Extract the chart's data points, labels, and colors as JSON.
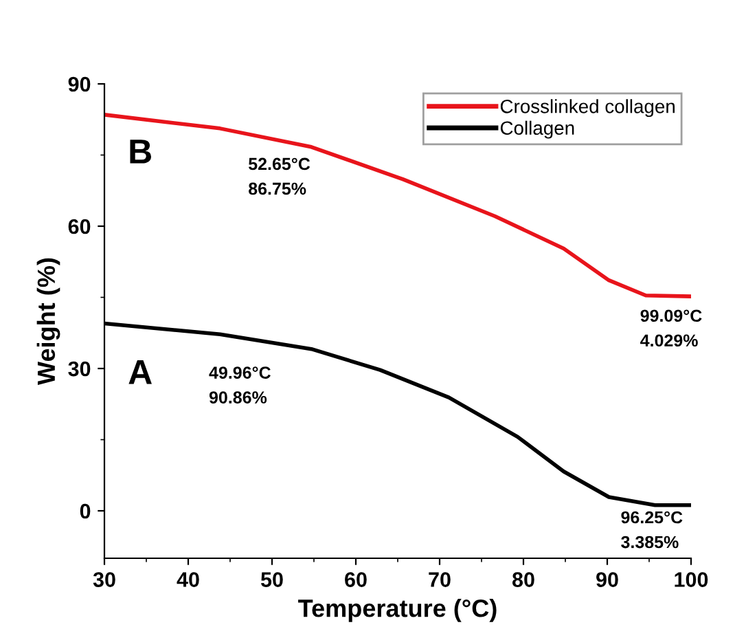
{
  "chart_data": {
    "type": "line",
    "xlabel": "Temperature (°C)",
    "ylabel": "Weight (%)",
    "xlim": [
      30,
      100
    ],
    "xticks": [
      30,
      40,
      50,
      60,
      70,
      80,
      90,
      100
    ],
    "ylim": [
      -10,
      90
    ],
    "yticks": [
      0,
      30,
      60,
      90
    ],
    "series": [
      {
        "name": "Crosslinked collagen",
        "color": "#e8141b",
        "x": [
          30,
          43.8,
          54.7,
          65.6,
          76.6,
          84.8,
          90.2,
          94.6,
          100
        ],
        "values": [
          83.5,
          80.6,
          76.7,
          69.9,
          62.1,
          55.3,
          48.6,
          45.4,
          45.2
        ]
      },
      {
        "name": "Collagen",
        "color": "#000000",
        "x": [
          30,
          43.8,
          54.7,
          62.9,
          71.1,
          79.3,
          84.8,
          90.2,
          95.7,
          100
        ],
        "values": [
          39.5,
          37.2,
          34.1,
          29.7,
          23.9,
          15.6,
          8.3,
          2.9,
          1.2,
          1.2
        ]
      }
    ],
    "annotations": [
      "B",
      "52.65°C\n86.75%",
      "99.09°C\n4.029%",
      "A",
      "49.96°C\n90.86%",
      "96.25°C\n3.385%"
    ],
    "legend": "top right",
    "grid": false,
    "marker": "none",
    "line_style": "solid"
  }
}
